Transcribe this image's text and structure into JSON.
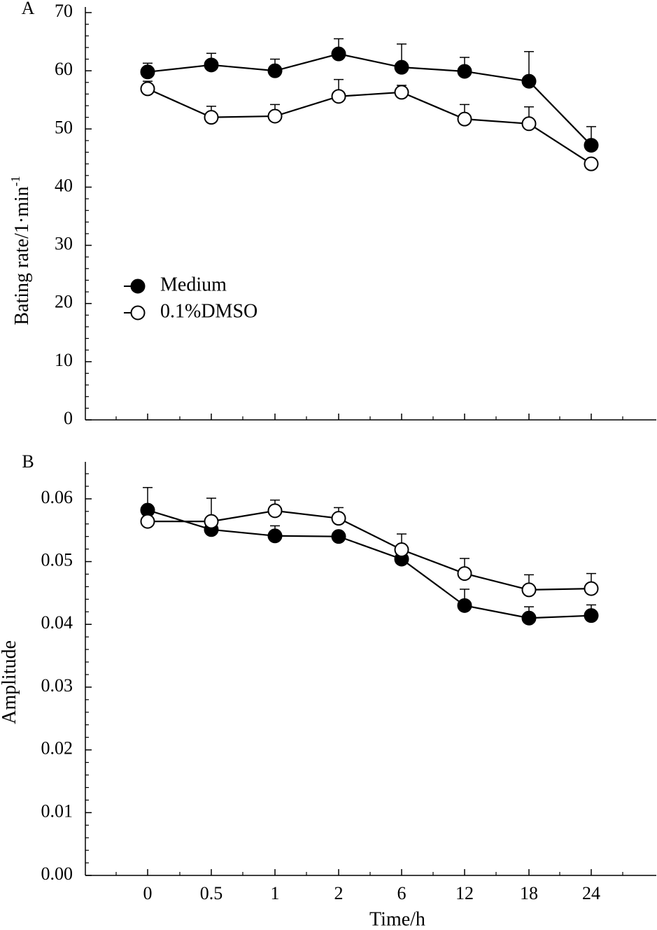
{
  "chart_data": [
    {
      "type": "line",
      "panel_label": "A",
      "title": "",
      "xlabel": "",
      "ylabel": "Bating rate/1·min",
      "ylabel_superscript": "-1",
      "categories": [
        "0",
        "0.5",
        "1",
        "2",
        "6",
        "12",
        "18",
        "24"
      ],
      "ylim": [
        0,
        70
      ],
      "yticks": [
        "0",
        "10",
        "20",
        "30",
        "40",
        "50",
        "60",
        "70"
      ],
      "legend_position": "center-left",
      "series": [
        {
          "name": "Medium",
          "marker": "filled-circle",
          "values": [
            59.8,
            61.0,
            60.0,
            62.9,
            60.6,
            59.9,
            58.2,
            47.2
          ],
          "errors": [
            1.5,
            2.0,
            2.0,
            2.6,
            4.0,
            2.4,
            5.1,
            3.2
          ]
        },
        {
          "name": "0.1%DMSO",
          "marker": "open-circle",
          "values": [
            56.9,
            52.0,
            52.2,
            55.6,
            56.3,
            51.7,
            50.9,
            44.0
          ],
          "errors": [
            1.3,
            1.9,
            2.0,
            2.9,
            1.2,
            2.5,
            2.9,
            0.0
          ]
        }
      ]
    },
    {
      "type": "line",
      "panel_label": "B",
      "title": "",
      "xlabel": "Time/h",
      "ylabel": "Amplitude",
      "categories": [
        "0",
        "0.5",
        "1",
        "2",
        "6",
        "12",
        "18",
        "24"
      ],
      "ylim": [
        0,
        0.065
      ],
      "yticks": [
        "0.00",
        "0.01",
        "0.02",
        "0.03",
        "0.04",
        "0.05",
        "0.06"
      ],
      "series": [
        {
          "name": "Medium",
          "marker": "filled-circle",
          "values": [
            0.0582,
            0.0551,
            0.0541,
            0.054,
            0.0504,
            0.043,
            0.041,
            0.0414
          ],
          "errors": [
            0.0036,
            0.0,
            0.0016,
            0.0,
            0.0,
            0.0026,
            0.0018,
            0.0017
          ]
        },
        {
          "name": "0.1%DMSO",
          "marker": "open-circle",
          "values": [
            0.0564,
            0.0564,
            0.0581,
            0.0569,
            0.0519,
            0.0481,
            0.0455,
            0.0457
          ],
          "errors": [
            0.0,
            0.0037,
            0.0017,
            0.0017,
            0.0025,
            0.0024,
            0.0024,
            0.0024
          ]
        }
      ]
    }
  ]
}
